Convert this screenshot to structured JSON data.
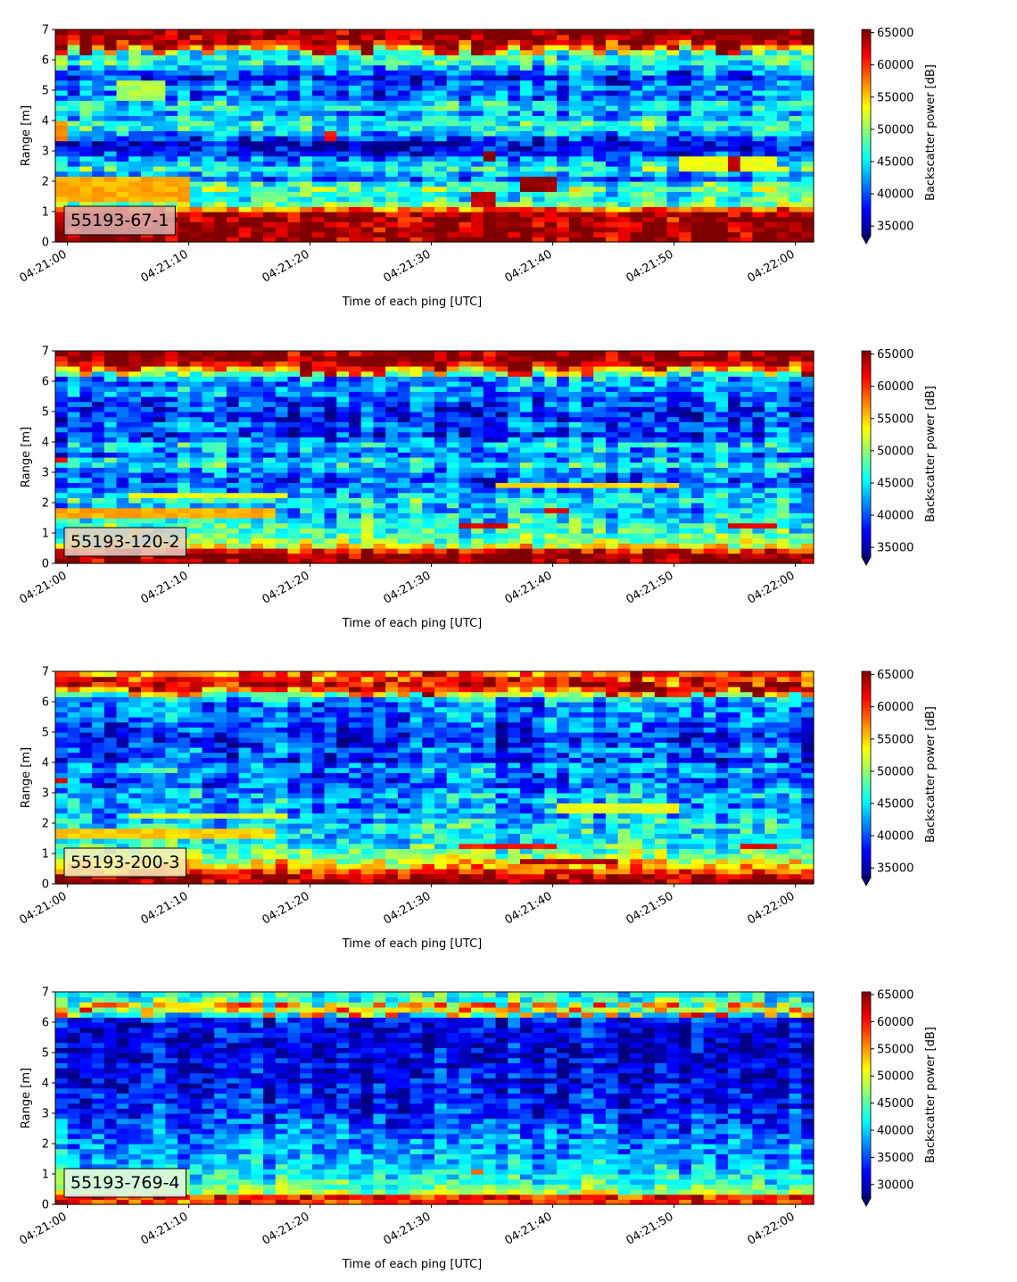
{
  "chart_data": [
    {
      "type": "heatmap",
      "id": "55193-67-1",
      "annotation": "55193-67-1",
      "annotation_bg": "#d9b1b0",
      "xlabel": "Time of each ping [UTC]",
      "ylabel": "Range [m]",
      "x_ticks": [
        "04:21:00",
        "04:21:10",
        "04:21:20",
        "04:21:30",
        "04:21:40",
        "04:21:50",
        "04:22:00"
      ],
      "y_ticks": [
        "0",
        "1",
        "2",
        "3",
        "4",
        "5",
        "6",
        "7"
      ],
      "ylim": [
        0,
        7
      ],
      "xlim_seconds_from_0421": [
        -1,
        61.5
      ],
      "colormap": "jet",
      "colorbar_label": "Backscatter power [dB]",
      "colorbar_range": [
        33500,
        65500
      ],
      "colorbar_ticks": [
        "35000",
        "40000",
        "45000",
        "50000",
        "55000",
        "60000",
        "65000"
      ],
      "colorbar_extend": "min",
      "profile": [
        [
          0.0,
          65500
        ],
        [
          0.2,
          65500
        ],
        [
          0.5,
          65500
        ],
        [
          0.8,
          65000
        ],
        [
          1.0,
          63000
        ],
        [
          1.2,
          50000
        ],
        [
          1.5,
          45000
        ],
        [
          1.8,
          50000
        ],
        [
          2.1,
          40000
        ],
        [
          2.4,
          47000
        ],
        [
          2.7,
          42000
        ],
        [
          3.0,
          38000
        ],
        [
          3.3,
          36000
        ],
        [
          3.6,
          44000
        ],
        [
          3.9,
          47000
        ],
        [
          4.2,
          42000
        ],
        [
          4.5,
          47000
        ],
        [
          4.8,
          40000
        ],
        [
          5.1,
          42000
        ],
        [
          5.4,
          38000
        ],
        [
          5.7,
          43000
        ],
        [
          6.0,
          48000
        ],
        [
          6.2,
          44000
        ],
        [
          6.5,
          60000
        ],
        [
          6.7,
          65500
        ],
        [
          7.0,
          65500
        ]
      ],
      "features": [
        {
          "t0": -1,
          "t1": 0.5,
          "r0": 3.3,
          "r1": 4.0,
          "v": 57000
        },
        {
          "t0": -1,
          "t1": 10,
          "r0": 1.3,
          "r1": 2.2,
          "v": 56000
        },
        {
          "t0": 4,
          "t1": 8,
          "r0": 4.7,
          "r1": 5.3,
          "v": 51000
        },
        {
          "t0": 33.5,
          "t1": 35.5,
          "r0": 1.2,
          "r1": 1.7,
          "v": 63000
        },
        {
          "t0": 34.5,
          "t1": 35.5,
          "r0": 2.7,
          "r1": 3.0,
          "v": 65000
        },
        {
          "t0": 37.5,
          "t1": 40,
          "r0": 1.7,
          "r1": 2.1,
          "v": 65000
        },
        {
          "t0": 21,
          "t1": 22,
          "r0": 3.4,
          "r1": 3.7,
          "v": 61000
        },
        {
          "t0": 54.5,
          "t1": 55.5,
          "r0": 2.4,
          "r1": 2.8,
          "v": 64000
        },
        {
          "t0": 50,
          "t1": 58,
          "r0": 2.4,
          "r1": 2.8,
          "v": 53000
        }
      ]
    },
    {
      "type": "heatmap",
      "id": "55193-120-2",
      "annotation": "55193-120-2",
      "annotation_bg": "#e4cbc7",
      "xlabel": "Time of each ping [UTC]",
      "ylabel": "Range [m]",
      "x_ticks": [
        "04:21:00",
        "04:21:10",
        "04:21:20",
        "04:21:30",
        "04:21:40",
        "04:21:50",
        "04:22:00"
      ],
      "y_ticks": [
        "0",
        "1",
        "2",
        "3",
        "4",
        "5",
        "6",
        "7"
      ],
      "ylim": [
        0,
        7
      ],
      "xlim_seconds_from_0421": [
        -1,
        61.5
      ],
      "colormap": "jet",
      "colorbar_label": "Backscatter power [dB]",
      "colorbar_range": [
        33500,
        65500
      ],
      "colorbar_ticks": [
        "35000",
        "40000",
        "45000",
        "50000",
        "55000",
        "60000",
        "65000"
      ],
      "colorbar_extend": "min",
      "profile": [
        [
          0.0,
          65500
        ],
        [
          0.3,
          65500
        ],
        [
          0.45,
          60000
        ],
        [
          0.6,
          52000
        ],
        [
          0.9,
          48000
        ],
        [
          1.2,
          47000
        ],
        [
          1.5,
          45000
        ],
        [
          1.8,
          43000
        ],
        [
          2.1,
          46000
        ],
        [
          2.4,
          42000
        ],
        [
          2.7,
          40000
        ],
        [
          3.0,
          41000
        ],
        [
          3.3,
          46000
        ],
        [
          3.6,
          40000
        ],
        [
          3.9,
          45000
        ],
        [
          4.2,
          38000
        ],
        [
          4.5,
          41000
        ],
        [
          4.8,
          38000
        ],
        [
          5.1,
          39000
        ],
        [
          5.4,
          40000
        ],
        [
          5.7,
          43000
        ],
        [
          6.0,
          41000
        ],
        [
          6.3,
          48000
        ],
        [
          6.5,
          60000
        ],
        [
          6.7,
          65500
        ],
        [
          7.0,
          65500
        ]
      ],
      "features": [
        {
          "t0": -1,
          "t1": 17,
          "r0": 1.5,
          "r1": 1.8,
          "v": 56000
        },
        {
          "t0": 5,
          "t1": 18,
          "r0": 2.1,
          "r1": 2.3,
          "v": 53000
        },
        {
          "t0": 32,
          "t1": 36,
          "r0": 1.1,
          "r1": 1.3,
          "v": 63000
        },
        {
          "t0": 35,
          "t1": 50,
          "r0": 2.5,
          "r1": 2.65,
          "v": 55000
        },
        {
          "t0": 54,
          "t1": 58,
          "r0": 1.1,
          "r1": 1.3,
          "v": 62000
        },
        {
          "t0": 39,
          "t1": 41,
          "r0": 1.6,
          "r1": 1.8,
          "v": 63000
        },
        {
          "t0": -1,
          "t1": 0.5,
          "r0": 3.3,
          "r1": 3.5,
          "v": 62000
        }
      ]
    },
    {
      "type": "heatmap",
      "id": "55193-200-3",
      "annotation": "55193-200-3",
      "annotation_bg": "#f4efbc",
      "xlabel": "Time of each ping [UTC]",
      "ylabel": "Range [m]",
      "x_ticks": [
        "04:21:00",
        "04:21:10",
        "04:21:20",
        "04:21:30",
        "04:21:40",
        "04:21:50",
        "04:22:00"
      ],
      "y_ticks": [
        "0",
        "1",
        "2",
        "3",
        "4",
        "5",
        "6",
        "7"
      ],
      "ylim": [
        0,
        7
      ],
      "xlim_seconds_from_0421": [
        -1,
        61.5
      ],
      "colormap": "jet",
      "colorbar_label": "Backscatter power [dB]",
      "colorbar_range": [
        33500,
        65500
      ],
      "colorbar_ticks": [
        "35000",
        "40000",
        "45000",
        "50000",
        "55000",
        "60000",
        "65000"
      ],
      "colorbar_extend": "min",
      "profile": [
        [
          0.0,
          65500
        ],
        [
          0.3,
          64000
        ],
        [
          0.5,
          57000
        ],
        [
          0.8,
          52000
        ],
        [
          1.1,
          48000
        ],
        [
          1.4,
          46000
        ],
        [
          1.7,
          45000
        ],
        [
          2.0,
          45000
        ],
        [
          2.3,
          43000
        ],
        [
          2.6,
          42000
        ],
        [
          2.9,
          44000
        ],
        [
          3.2,
          41000
        ],
        [
          3.5,
          40000
        ],
        [
          3.8,
          44000
        ],
        [
          4.1,
          38000
        ],
        [
          4.4,
          41000
        ],
        [
          4.7,
          38000
        ],
        [
          5.0,
          39000
        ],
        [
          5.3,
          40000
        ],
        [
          5.6,
          42000
        ],
        [
          5.9,
          41000
        ],
        [
          6.2,
          46000
        ],
        [
          6.5,
          62000
        ],
        [
          6.7,
          65500
        ],
        [
          6.85,
          57000
        ],
        [
          7.0,
          60000
        ]
      ],
      "features": [
        {
          "t0": -1,
          "t1": 17,
          "r0": 1.5,
          "r1": 1.8,
          "v": 55000
        },
        {
          "t0": 5,
          "t1": 18,
          "r0": 2.1,
          "r1": 2.3,
          "v": 52000
        },
        {
          "t0": 32,
          "t1": 40,
          "r0": 1.1,
          "r1": 1.3,
          "v": 61000
        },
        {
          "t0": 37,
          "t1": 45,
          "r0": 0.75,
          "r1": 0.9,
          "v": 64000
        },
        {
          "t0": 40,
          "t1": 50,
          "r0": 2.4,
          "r1": 2.6,
          "v": 53000
        },
        {
          "t0": 55,
          "t1": 58,
          "r0": 1.1,
          "r1": 1.3,
          "v": 62000
        },
        {
          "t0": -1,
          "t1": 0.5,
          "r0": 3.3,
          "r1": 3.5,
          "v": 62000
        }
      ]
    },
    {
      "type": "heatmap",
      "id": "55193-769-4",
      "annotation": "55193-769-4",
      "annotation_bg": "#dff5ec",
      "xlabel": "Time of each ping [UTC]",
      "ylabel": "Range [m]",
      "x_ticks": [
        "04:21:00",
        "04:21:10",
        "04:21:20",
        "04:21:30",
        "04:21:40",
        "04:21:50",
        "04:22:00"
      ],
      "y_ticks": [
        "0",
        "1",
        "2",
        "3",
        "4",
        "5",
        "6",
        "7"
      ],
      "ylim": [
        0,
        7
      ],
      "xlim_seconds_from_0421": [
        -1,
        61.5
      ],
      "colormap": "jet",
      "colorbar_label": "Backscatter power [dB]",
      "colorbar_range": [
        27500,
        65500
      ],
      "colorbar_ticks": [
        "30000",
        "35000",
        "40000",
        "45000",
        "50000",
        "55000",
        "60000",
        "65000"
      ],
      "colorbar_extend": "min",
      "profile": [
        [
          0.0,
          42000
        ],
        [
          0.1,
          63000
        ],
        [
          0.2,
          65000
        ],
        [
          0.3,
          55000
        ],
        [
          0.45,
          46000
        ],
        [
          0.7,
          44000
        ],
        [
          1.0,
          41000
        ],
        [
          1.5,
          39000
        ],
        [
          2.0,
          38000
        ],
        [
          2.5,
          36000
        ],
        [
          3.0,
          34000
        ],
        [
          3.5,
          33000
        ],
        [
          4.0,
          32000
        ],
        [
          4.5,
          31500
        ],
        [
          5.0,
          31000
        ],
        [
          5.5,
          31500
        ],
        [
          6.0,
          32000
        ],
        [
          6.2,
          36000
        ],
        [
          6.4,
          48000
        ],
        [
          6.5,
          62000
        ],
        [
          6.6,
          55000
        ],
        [
          6.75,
          45000
        ],
        [
          6.9,
          43000
        ],
        [
          7.0,
          42000
        ]
      ],
      "features": [
        {
          "t0": -1,
          "t1": 10,
          "r0": 0.4,
          "r1": 1.1,
          "v": 47000
        },
        {
          "t0": 33.5,
          "t1": 34.5,
          "r0": 1.0,
          "r1": 1.2,
          "v": 56000
        }
      ]
    }
  ]
}
